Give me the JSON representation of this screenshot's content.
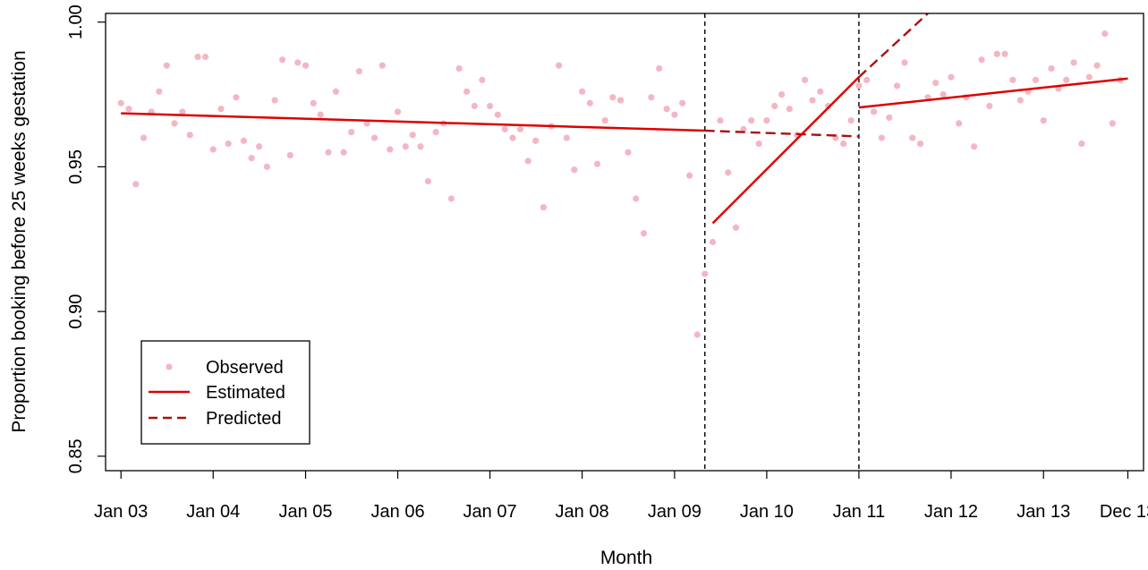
{
  "chart_data": {
    "type": "scatter",
    "title": "",
    "xlabel": "Month",
    "ylabel": "Proportion booking before 25 weeks gestation",
    "x_range": [
      "2002-11-01",
      "2014-02-01"
    ],
    "ylim": [
      0.845,
      1.003
    ],
    "x_ticks": [
      {
        "date": "2003-01-01",
        "label": "Jan 03"
      },
      {
        "date": "2004-01-01",
        "label": "Jan 04"
      },
      {
        "date": "2005-01-01",
        "label": "Jan 05"
      },
      {
        "date": "2006-01-01",
        "label": "Jan 06"
      },
      {
        "date": "2007-01-01",
        "label": "Jan 07"
      },
      {
        "date": "2008-01-01",
        "label": "Jan 08"
      },
      {
        "date": "2009-01-01",
        "label": "Jan 09"
      },
      {
        "date": "2010-01-01",
        "label": "Jan 10"
      },
      {
        "date": "2011-01-01",
        "label": "Jan 11"
      },
      {
        "date": "2012-01-01",
        "label": "Jan 12"
      },
      {
        "date": "2013-01-01",
        "label": "Jan 13"
      },
      {
        "date": "2013-12-01",
        "label": "Dec 13"
      }
    ],
    "y_ticks": [
      {
        "value": 0.85,
        "label": "0.85"
      },
      {
        "value": 0.9,
        "label": "0.90"
      },
      {
        "value": 0.95,
        "label": "0.95"
      },
      {
        "value": 1.0,
        "label": "1.00"
      }
    ],
    "grid": false,
    "legend": {
      "position": "bottom-left",
      "entries": [
        {
          "label": "Observed",
          "style": "point"
        },
        {
          "label": "Estimated",
          "style": "solid-line"
        },
        {
          "label": "Predicted",
          "style": "dashed-line"
        }
      ]
    },
    "colors": {
      "observed": "#f4b6c2",
      "estimated": "#dd0000",
      "predicted": "#aa1111",
      "vline": "#000000"
    },
    "vertical_lines": [
      "2009-05-01",
      "2011-01-01"
    ],
    "observed": {
      "start_month": "2003-01",
      "values": [
        0.972,
        0.97,
        0.944,
        0.96,
        0.969,
        0.976,
        0.985,
        0.965,
        0.969,
        0.961,
        0.988,
        0.988,
        0.956,
        0.97,
        0.958,
        0.974,
        0.959,
        0.953,
        0.957,
        0.95,
        0.973,
        0.987,
        0.954,
        0.986,
        0.985,
        0.972,
        0.968,
        0.955,
        0.976,
        0.955,
        0.962,
        0.983,
        0.965,
        0.96,
        0.985,
        0.956,
        0.969,
        0.957,
        0.961,
        0.957,
        0.945,
        0.962,
        0.965,
        0.939,
        0.984,
        0.976,
        0.971,
        0.98,
        0.971,
        0.968,
        0.963,
        0.96,
        0.963,
        0.952,
        0.959,
        0.936,
        0.964,
        0.985,
        0.96,
        0.949,
        0.976,
        0.972,
        0.951,
        0.966,
        0.974,
        0.973,
        0.955,
        0.939,
        0.927,
        0.974,
        0.984,
        0.97,
        0.968,
        0.972,
        0.947,
        0.892,
        0.913,
        0.924,
        0.966,
        0.948,
        0.929,
        0.963,
        0.966,
        0.958,
        0.966,
        0.971,
        0.975,
        0.97,
        0.961,
        0.98,
        0.973,
        0.976,
        0.971,
        0.96,
        0.958,
        0.966,
        0.978,
        0.98,
        0.969,
        0.96,
        0.967,
        0.978,
        0.986,
        0.96,
        0.958,
        0.974,
        0.979,
        0.975,
        0.981,
        0.965,
        0.974,
        0.957,
        0.987,
        0.971,
        0.989,
        0.989,
        0.98,
        0.973,
        0.976,
        0.98,
        0.966,
        0.984,
        0.977,
        0.98,
        0.986,
        0.958,
        0.981,
        0.985,
        0.996,
        0.965,
        0.98
      ]
    },
    "estimated_segments": [
      {
        "points": [
          [
            "2003-01-01",
            0.9685
          ],
          [
            "2009-05-01",
            0.9625
          ]
        ]
      },
      {
        "points": [
          [
            "2009-06-01",
            0.9305
          ],
          [
            "2011-01-01",
            0.981
          ]
        ]
      },
      {
        "points": [
          [
            "2011-01-01",
            0.9705
          ],
          [
            "2013-12-01",
            0.9805
          ]
        ]
      }
    ],
    "predicted_segments": [
      {
        "points": [
          [
            "2009-05-01",
            0.9625
          ],
          [
            "2011-01-01",
            0.9605
          ]
        ]
      },
      {
        "points": [
          [
            "2011-01-01",
            0.981
          ],
          [
            "2011-10-01",
            1.003
          ]
        ]
      }
    ]
  }
}
